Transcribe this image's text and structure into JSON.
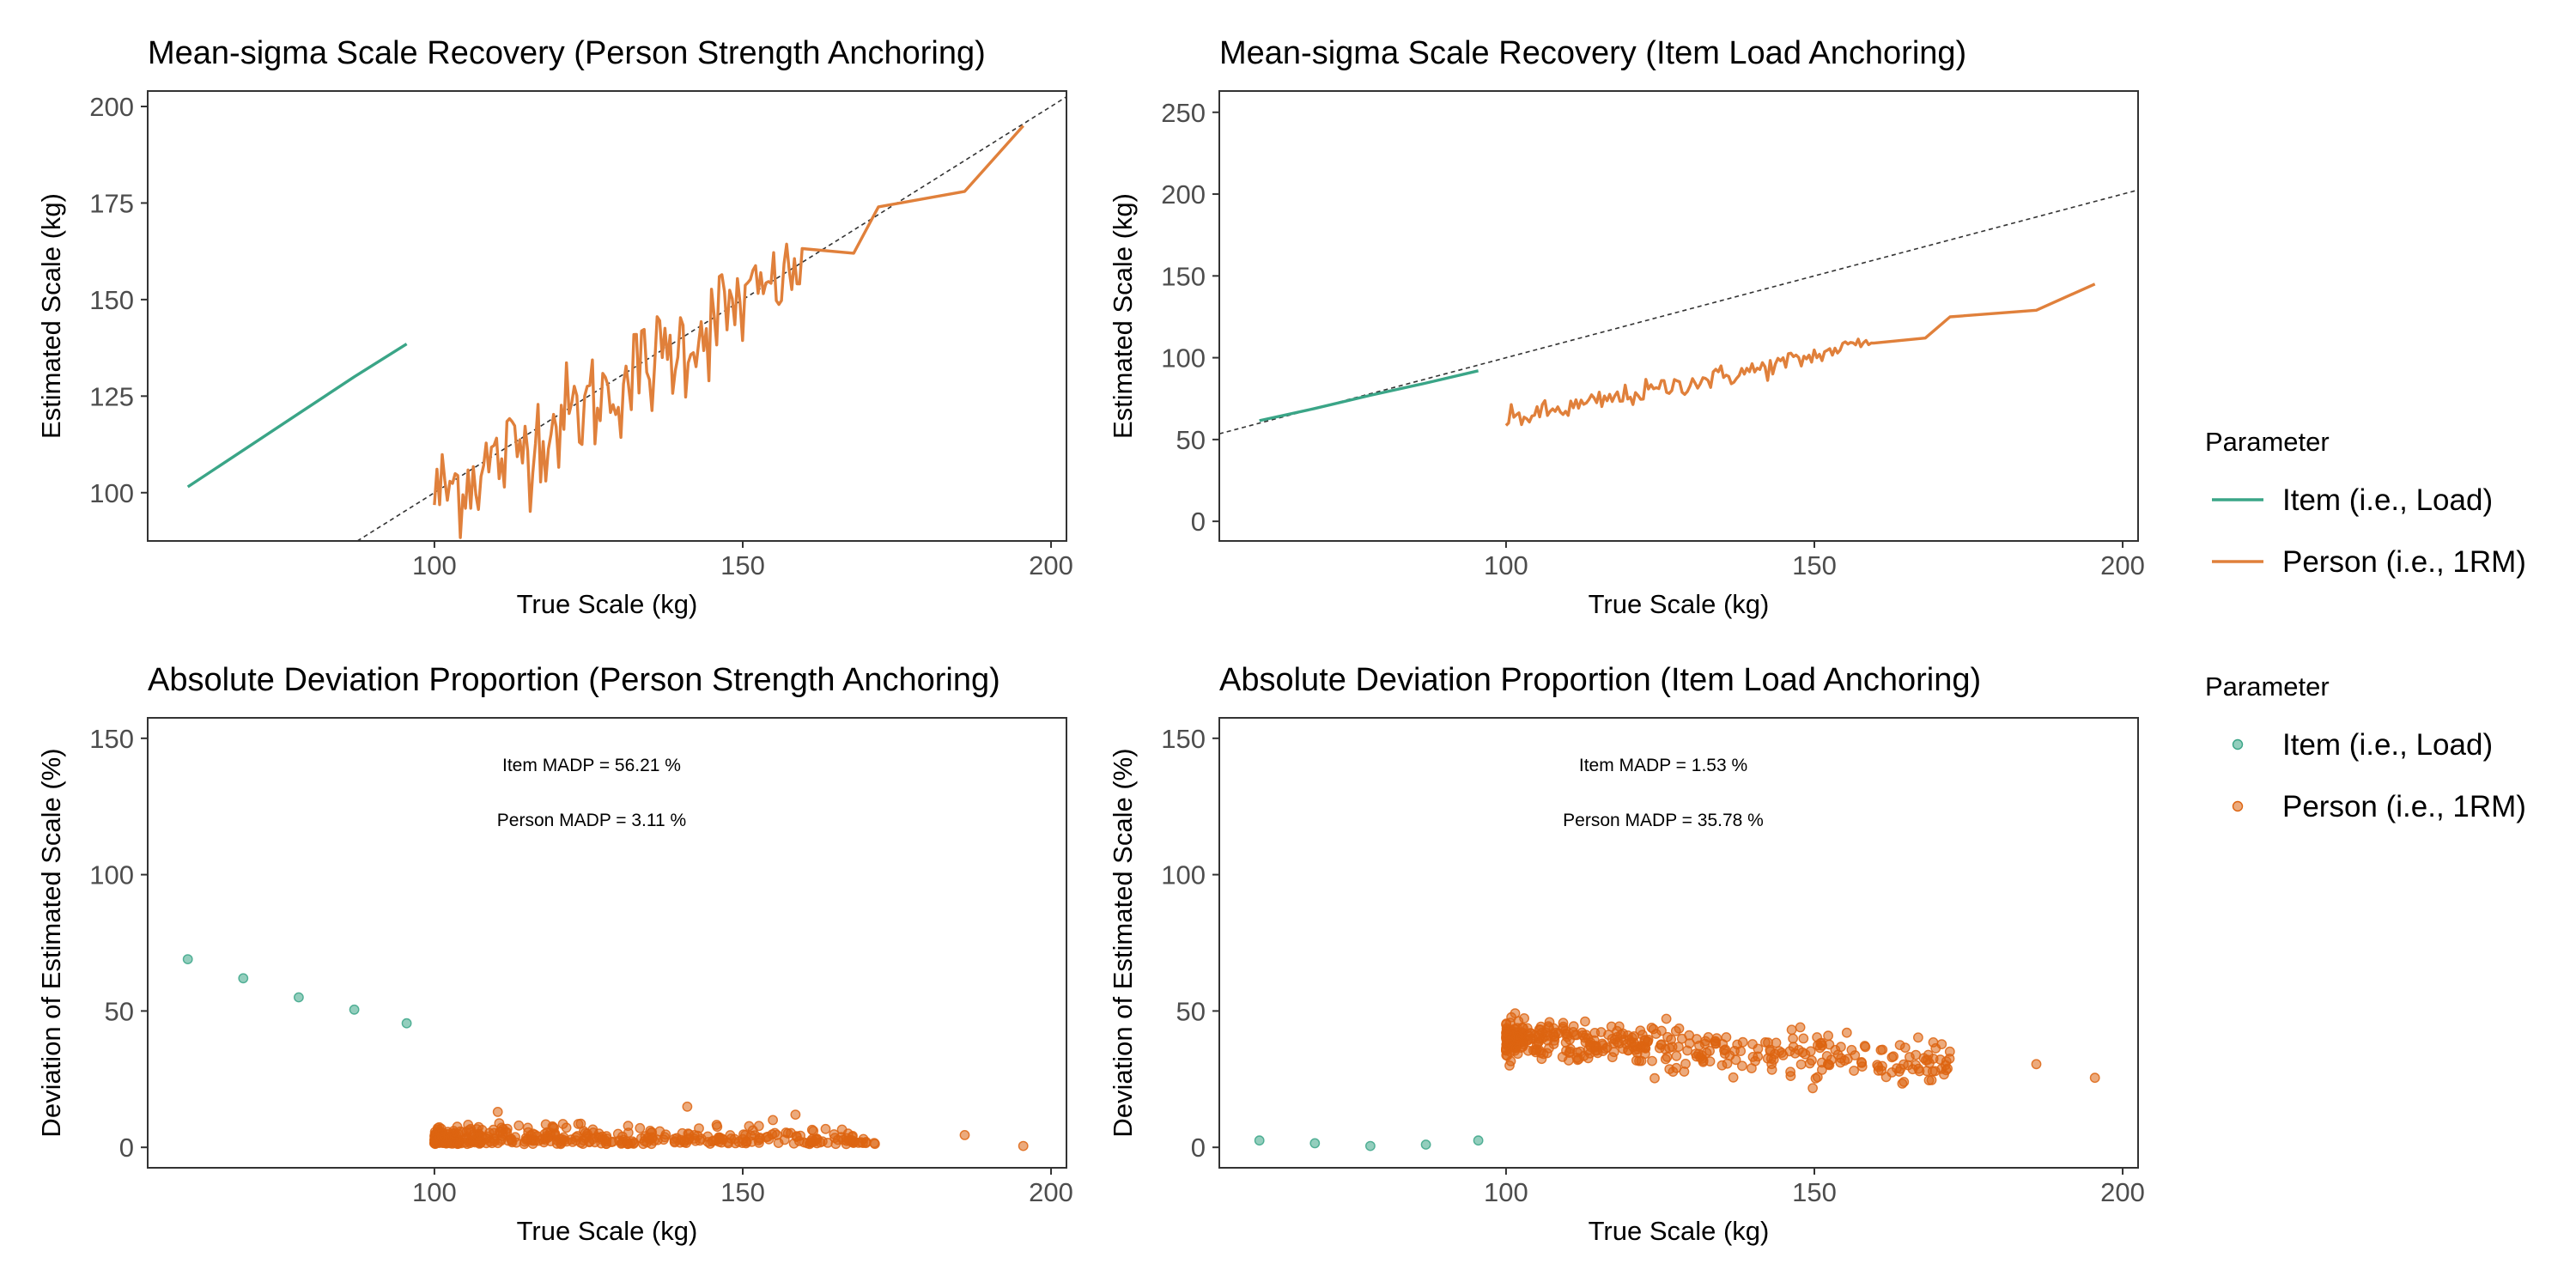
{
  "colors": {
    "item": "#3aa587",
    "person": "#dd6410",
    "person_line": "#e0803b",
    "reference": "#333333"
  },
  "legends": [
    {
      "title": "Parameter",
      "type": "line",
      "entries": [
        "Item (i.e., Load)",
        "Person (i.e., 1RM)"
      ]
    },
    {
      "title": "Parameter",
      "type": "point",
      "entries": [
        "Item (i.e., Load)",
        "Person (i.e., 1RM)"
      ]
    }
  ],
  "chart_data": [
    {
      "type": "line",
      "title": "Mean-sigma Scale Recovery (Person Strength Anchoring)",
      "xlabel": "True Scale (kg)",
      "ylabel": "Estimated Scale (kg)",
      "xlim": [
        53.5,
        202.5
      ],
      "ylim": [
        87.5,
        204
      ],
      "xticks": [
        100,
        150,
        200
      ],
      "yticks": [
        100,
        125,
        150,
        175,
        200
      ],
      "reference_line": {
        "slope": 1,
        "intercept": 0
      },
      "series": [
        {
          "name": "Item (i.e., Load)",
          "x": [
            60,
            69,
            78,
            87,
            95.5
          ],
          "y": [
            101.5,
            111,
            120.5,
            130,
            138.5
          ]
        },
        {
          "name": "Person (i.e., 1RM)",
          "x": [
            100,
            110,
            120,
            130,
            140,
            150,
            160,
            168,
            172,
            186,
            195.5
          ],
          "y": [
            99,
            108,
            118,
            128,
            138,
            150,
            158,
            162,
            174,
            178,
            195
          ],
          "noise": 7
        }
      ]
    },
    {
      "type": "line",
      "title": "Mean-sigma Scale Recovery (Item Load Anchoring)",
      "xlabel": "True Scale (kg)",
      "ylabel": "Estimated Scale (kg)",
      "xlim": [
        53.5,
        202.5
      ],
      "ylim": [
        -12,
        263
      ],
      "xticks": [
        100,
        150,
        200
      ],
      "yticks": [
        0,
        50,
        100,
        150,
        200,
        250
      ],
      "reference_line": {
        "slope": 1,
        "intercept": 0
      },
      "series": [
        {
          "name": "Item (i.e., Load)",
          "x": [
            60,
            69,
            78,
            87,
            95.5
          ],
          "y": [
            61.5,
            69,
            77,
            84.5,
            92
          ]
        },
        {
          "name": "Person (i.e., 1RM)",
          "x": [
            100,
            110,
            120,
            130,
            140,
            150,
            160,
            168,
            172,
            186,
            195.5
          ],
          "y": [
            62,
            69,
            77,
            85,
            92,
            101,
            112,
            112,
            125,
            129,
            145
          ],
          "noise": 3.5
        }
      ]
    },
    {
      "type": "scatter",
      "title": "Absolute Deviation Proportion (Person Strength Anchoring)",
      "xlabel": "True Scale (kg)",
      "ylabel": "Deviation of Estimated Scale (%)",
      "xlim": [
        53.5,
        202.5
      ],
      "ylim": [
        -7.5,
        157.5
      ],
      "xticks": [
        100,
        150,
        200
      ],
      "yticks": [
        0,
        50,
        100,
        150
      ],
      "annotations": [
        "Item MADP =  56.21 %",
        "Person MADP =  3.11 %"
      ],
      "series": [
        {
          "name": "Item (i.e., Load)",
          "x": [
            60,
            69,
            78,
            87,
            95.5
          ],
          "y": [
            69,
            62,
            55,
            50.5,
            45.5
          ]
        },
        {
          "name": "Person (i.e., 1RM)",
          "x_range": [
            100,
            172
          ],
          "y_center": 3,
          "spread": 4,
          "count": 420,
          "extra_x": [
            186,
            195.5
          ],
          "extra_y": [
            4.5,
            0.5
          ]
        }
      ]
    },
    {
      "type": "scatter",
      "title": "Absolute Deviation Proportion (Item Load Anchoring)",
      "xlabel": "True Scale (kg)",
      "ylabel": "Deviation of Estimated Scale (%)",
      "xlim": [
        53.5,
        202.5
      ],
      "ylim": [
        -7.5,
        157.5
      ],
      "xticks": [
        100,
        150,
        200
      ],
      "yticks": [
        0,
        50,
        100,
        150
      ],
      "annotations": [
        "Item MADP =  1.53 %",
        "Person MADP =  35.78 %"
      ],
      "series": [
        {
          "name": "Item (i.e., Load)",
          "x": [
            60,
            69,
            78,
            87,
            95.5
          ],
          "y": [
            2.5,
            1.5,
            0.5,
            1,
            2.5
          ]
        },
        {
          "name": "Person (i.e., 1RM)",
          "x_range": [
            100,
            172
          ],
          "y_start": 40,
          "y_end": 30,
          "spread": 4,
          "count": 420,
          "extra_x": [
            186,
            195.5
          ],
          "extra_y": [
            30.5,
            25.5
          ]
        }
      ]
    }
  ]
}
